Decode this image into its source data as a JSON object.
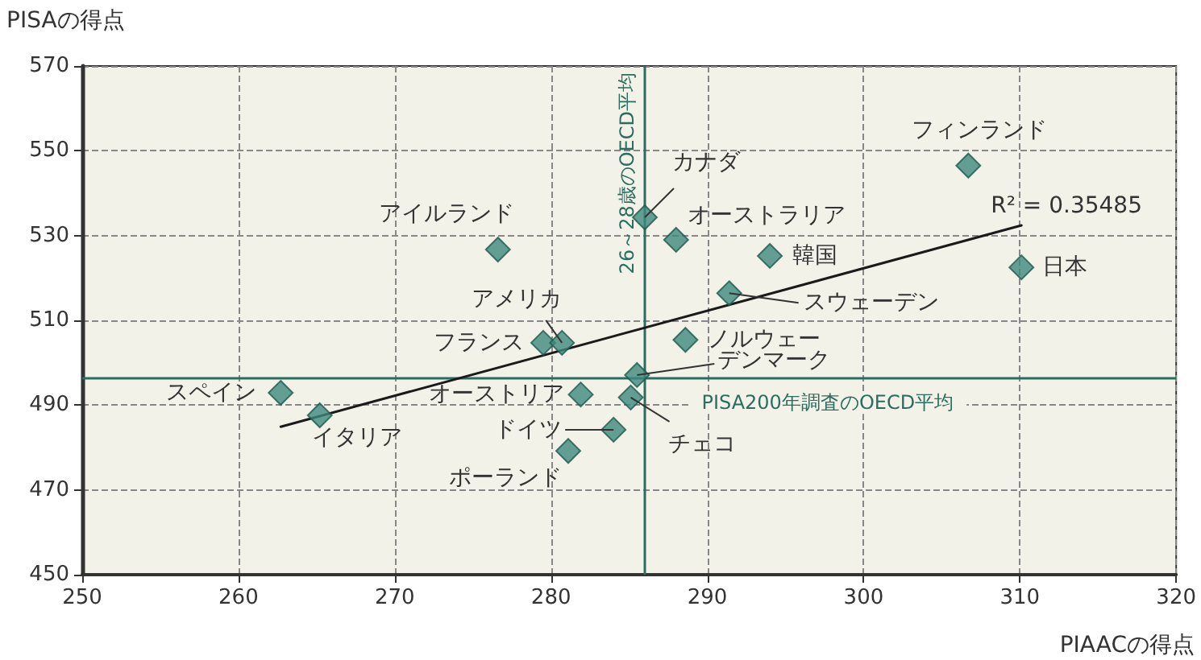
{
  "chart_data": {
    "type": "scatter",
    "xlabel": "PIAACの得点",
    "ylabel": "PISAの得点",
    "xlim": [
      250,
      320
    ],
    "xticks": [
      250,
      260,
      270,
      280,
      290,
      300,
      310,
      320
    ],
    "ylim": [
      450,
      570
    ],
    "yticks": [
      450,
      470,
      490,
      510,
      530,
      550,
      570
    ],
    "grid": true,
    "marker": "diamond",
    "series": [
      {
        "color": "#3d8a7c",
        "x": [
          262.7,
          265.2,
          276.6,
          279.5,
          280.7,
          281.9,
          284.0,
          281.1,
          285.1,
          285.5,
          286.0,
          288.0,
          288.6,
          294.0,
          291.4,
          306.7,
          310.1
        ],
        "values": [
          492.9,
          487.6,
          526.7,
          504.7,
          504.7,
          492.5,
          484.2,
          479.2,
          491.8,
          497.1,
          534.3,
          529.0,
          505.4,
          525.2,
          516.4,
          546.5,
          522.5
        ]
      },
      {
        "type": "line",
        "color": "#1a1a1a",
        "marker": "none",
        "x": [
          262.7,
          310.1
        ],
        "values": [
          484.9,
          532.4
        ]
      }
    ],
    "ref_lines": [
      {
        "axis": "x",
        "value": 286,
        "label": "26～28歳のOECD平均",
        "color": "#2a6e60"
      },
      {
        "axis": "y",
        "value": 496.3,
        "label": "PISA200年調査のOECD平均",
        "color": "#2a6e60"
      }
    ],
    "annotations": [
      {
        "text": "スペイン",
        "x": 262.7,
        "y": 492.9
      },
      {
        "text": "イタリア",
        "x": 265.2,
        "y": 487.6
      },
      {
        "text": "アイルランド",
        "x": 276.6,
        "y": 526.7
      },
      {
        "text": "フランス",
        "x": 279.5,
        "y": 504.7
      },
      {
        "text": "アメリカ",
        "x": 280.7,
        "y": 504.7
      },
      {
        "text": "オーストリア",
        "x": 281.9,
        "y": 492.5
      },
      {
        "text": "ドイツ",
        "x": 284.0,
        "y": 484.2
      },
      {
        "text": "ポーランド",
        "x": 281.1,
        "y": 479.2
      },
      {
        "text": "チェコ",
        "x": 285.1,
        "y": 491.8
      },
      {
        "text": "デンマーク",
        "x": 285.5,
        "y": 497.1
      },
      {
        "text": "カナダ",
        "x": 286.0,
        "y": 534.3
      },
      {
        "text": "オーストラリア",
        "x": 288.0,
        "y": 529.0
      },
      {
        "text": "ノルウェー",
        "x": 288.6,
        "y": 505.4
      },
      {
        "text": "韓国",
        "x": 294.0,
        "y": 525.2
      },
      {
        "text": "スウェーデン",
        "x": 291.4,
        "y": 516.4
      },
      {
        "text": "フィンランド",
        "x": 306.7,
        "y": 546.5
      },
      {
        "text": "日本",
        "x": 310.1,
        "y": 522.5
      },
      {
        "text": "R² = 0.35485",
        "x": 310.1,
        "y": 532.4
      }
    ]
  }
}
